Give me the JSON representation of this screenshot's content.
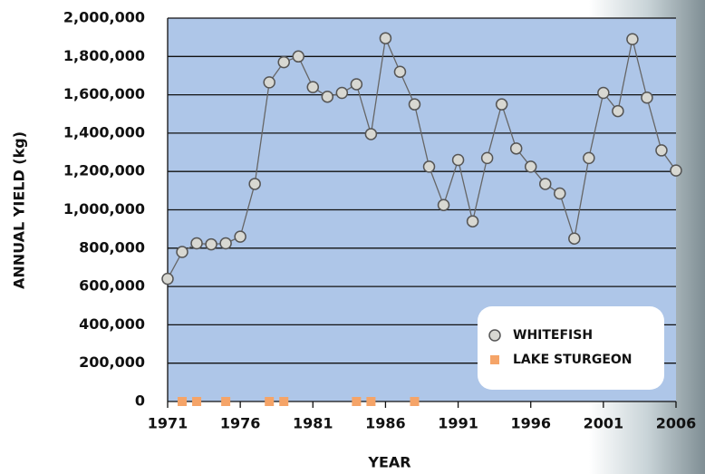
{
  "chart_data": {
    "type": "line",
    "xlabel": "YEAR",
    "ylabel": "ANNUAL YIELD (kg)",
    "xlim": [
      1971,
      2006
    ],
    "xticks": [
      1971,
      1976,
      1981,
      1986,
      1991,
      1996,
      2001,
      2006
    ],
    "ylim": [
      0,
      2000000
    ],
    "yticks": [
      0,
      {
        "value": 200000,
        "label": "200,000"
      },
      {
        "value": 400000,
        "label": "400,000"
      },
      {
        "value": 600000,
        "label": "600,000"
      },
      {
        "value": 800000,
        "label": "800,000"
      },
      {
        "value": 1000000,
        "label": "1,000,000"
      },
      {
        "value": 1200000,
        "label": "1,200,000"
      },
      {
        "value": 1400000,
        "label": "1,400,000"
      },
      {
        "value": 1600000,
        "label": "1,600,000"
      },
      {
        "value": 1800000,
        "label": "1,800,000"
      },
      {
        "value": 2000000,
        "label": "2,000,000"
      }
    ],
    "grid": true,
    "legend": "lower right",
    "series": [
      {
        "name": "WHITEFISH",
        "color": "#d8d8d2",
        "marker": "circle",
        "x": [
          1971,
          1972,
          1973,
          1974,
          1975,
          1976,
          1977,
          1978,
          1979,
          1980,
          1981,
          1982,
          1983,
          1984,
          1985,
          1986,
          1987,
          1988,
          1989,
          1990,
          1991,
          1992,
          1993,
          1994,
          1995,
          1996,
          1997,
          1998,
          1999,
          2000,
          2001,
          2002,
          2003,
          2004,
          2005,
          2006
        ],
        "values": [
          640000,
          780000,
          825000,
          820000,
          825000,
          860000,
          1135000,
          1665000,
          1770000,
          1800000,
          1640000,
          1590000,
          1610000,
          1655000,
          1395000,
          1895000,
          1720000,
          1550000,
          1225000,
          1025000,
          1260000,
          940000,
          1270000,
          1550000,
          1320000,
          1225000,
          1135000,
          1085000,
          850000,
          1270000,
          1610000,
          1515000,
          1890000,
          1585000,
          1310000,
          1205000
        ]
      },
      {
        "name": "LAKE STURGEON",
        "color": "#f5a468",
        "marker": "square",
        "x": [
          1972,
          1973,
          1975,
          1978,
          1979,
          1984,
          1985,
          1988
        ],
        "values": [
          0,
          0,
          0,
          0,
          0,
          0,
          0,
          0
        ]
      }
    ]
  }
}
